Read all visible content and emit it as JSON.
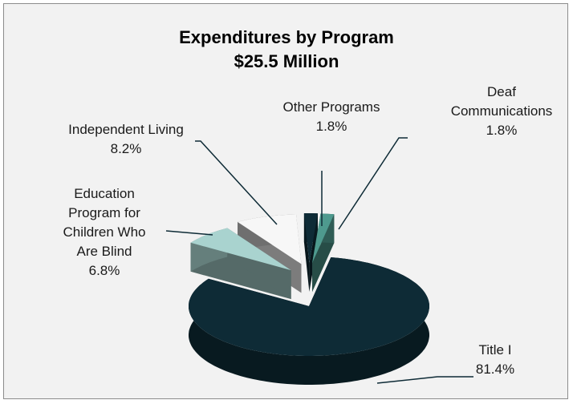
{
  "chart_data": {
    "type": "pie",
    "title": "Expenditures by Program",
    "subtitle": "$25.5 Million",
    "categories": [
      "Deaf Communications",
      "Title I",
      "Education Program for Children Who Are Blind",
      "Independent Living",
      "Other Programs"
    ],
    "values": [
      1.8,
      81.4,
      6.8,
      8.2,
      1.8
    ],
    "value_labels": [
      "1.8%",
      "81.4%",
      "6.8%",
      "8.2%",
      "1.8%"
    ],
    "colors": [
      "#4e9a8e",
      "#0e2b36",
      "#a9d3cf",
      "#f7f7f7",
      "#0e2b36"
    ]
  }
}
